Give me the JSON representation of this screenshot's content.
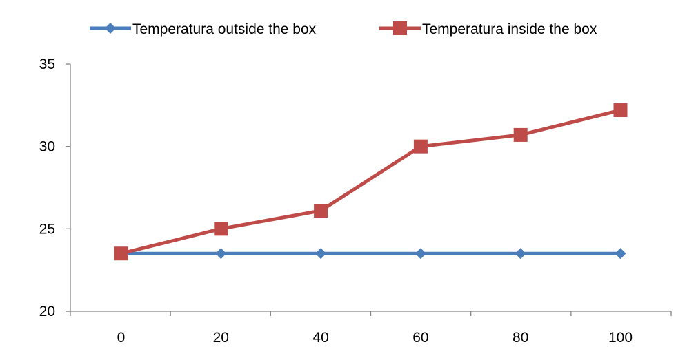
{
  "chart_data": {
    "type": "line",
    "x": [
      0,
      20,
      40,
      60,
      80,
      100
    ],
    "xlim": [
      0,
      100
    ],
    "ylim": [
      20,
      35
    ],
    "x_ticks": [
      "0",
      "20",
      "40",
      "60",
      "80",
      "100"
    ],
    "y_ticks": [
      "20",
      "25",
      "30",
      "35"
    ],
    "grid": false,
    "legend_position": "top",
    "series": [
      {
        "name": "Temperatura outside the box",
        "values": [
          23.5,
          23.5,
          23.5,
          23.5,
          23.5,
          23.5
        ],
        "color": "#4a7ebb",
        "marker": "diamond"
      },
      {
        "name": "Temperatura inside the box",
        "values": [
          23.5,
          25.0,
          26.1,
          30.0,
          30.7,
          32.2
        ],
        "color": "#be4b48",
        "marker": "square"
      }
    ]
  }
}
